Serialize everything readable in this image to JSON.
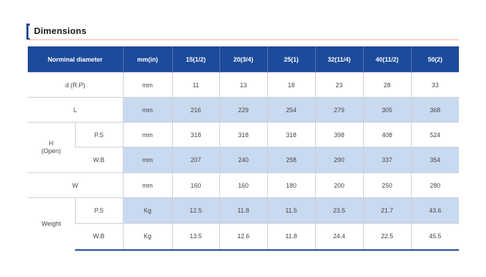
{
  "section": {
    "title": "Dimensions"
  },
  "table": {
    "header": {
      "label": "Norminal diameter",
      "unit": "mm(in)",
      "sizes": [
        "15(1/2)",
        "20(3/4)",
        "25(1)",
        "32(11/4)",
        "40(11/2)",
        "50(2)"
      ]
    },
    "rows": {
      "d": {
        "label": "d (R.P)",
        "unit": "mm",
        "values": [
          "11",
          "13",
          "18",
          "23",
          "28",
          "33"
        ]
      },
      "L": {
        "label": "L",
        "unit": "mm",
        "values": [
          "216",
          "229",
          "254",
          "279",
          "305",
          "368"
        ]
      },
      "H": {
        "label_line1": "H",
        "label_line2": "(Open)",
        "ps": {
          "label": "P.S",
          "unit": "mm",
          "values": [
            "318",
            "318",
            "318",
            "398",
            "408",
            "524"
          ]
        },
        "wb": {
          "label": "W.B",
          "unit": "mm",
          "values": [
            "207",
            "240",
            "258",
            "290",
            "337",
            "354"
          ]
        }
      },
      "W": {
        "label": "W",
        "unit": "mm",
        "values": [
          "160",
          "160",
          "180",
          "200",
          "250",
          "280"
        ]
      },
      "weight": {
        "label": "Weight",
        "ps": {
          "label": "P.S",
          "unit": "Kg",
          "values": [
            "12.5",
            "11.8",
            "11.5",
            "23.5",
            "21.7",
            "43.6"
          ]
        },
        "wb": {
          "label": "W.B",
          "unit": "Kg",
          "values": [
            "13.5",
            "12.6",
            "11.8",
            "24.4",
            "22.5",
            "45.5"
          ]
        }
      }
    }
  }
}
